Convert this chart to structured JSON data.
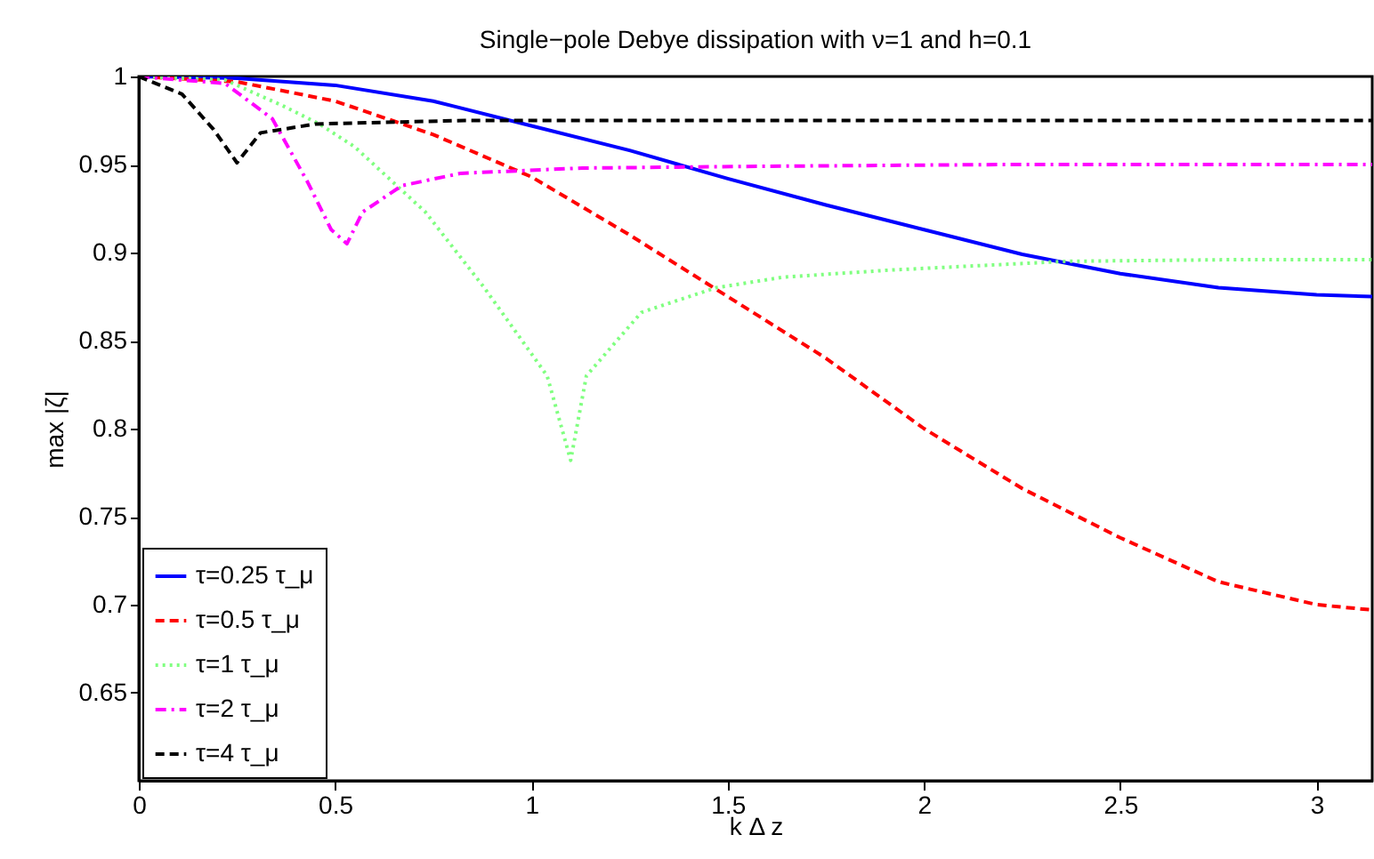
{
  "chart_data": {
    "type": "line",
    "title": "Single−pole Debye dissipation with ν=1 and h=0.1",
    "xlabel": "k Δ z",
    "ylabel": "max |ζ|",
    "xlim": [
      0,
      3.1416
    ],
    "ylim": [
      0.6,
      1
    ],
    "xticks": [
      0,
      0.5,
      1,
      1.5,
      2,
      2.5,
      3
    ],
    "yticks": [
      0.65,
      0.7,
      0.75,
      0.8,
      0.85,
      0.9,
      0.95,
      1
    ],
    "grid": false,
    "legend": "bottom left",
    "series": [
      {
        "name": "τ=0.25 τ_μ",
        "color": "#0000ff",
        "line_style": "solid",
        "x": [
          0,
          0.25,
          0.5,
          0.75,
          1,
          1.25,
          1.5,
          1.75,
          2,
          2.25,
          2.5,
          2.75,
          3,
          3.1416
        ],
        "values": [
          1,
          0.999,
          0.995,
          0.986,
          0.972,
          0.958,
          0.942,
          0.927,
          0.913,
          0.899,
          0.888,
          0.88,
          0.876,
          0.875
        ]
      },
      {
        "name": "τ=0.5 τ_μ",
        "color": "#ff0000",
        "line_style": "dashed",
        "x": [
          0,
          0.25,
          0.5,
          0.75,
          1,
          1.25,
          1.5,
          1.75,
          2,
          2.25,
          2.5,
          2.75,
          3,
          3.1416
        ],
        "values": [
          1,
          0.997,
          0.986,
          0.967,
          0.943,
          0.91,
          0.875,
          0.84,
          0.8,
          0.766,
          0.738,
          0.713,
          0.7,
          0.697
        ]
      },
      {
        "name": "τ=1 τ_μ",
        "color": "#80ff80",
        "line_style": "dotted",
        "x": [
          0,
          0.22,
          0.37,
          0.46,
          0.55,
          0.73,
          0.88,
          1.04,
          1.1,
          1.14,
          1.28,
          1.47,
          1.64,
          1.91,
          2.36,
          2.8,
          3.1416
        ],
        "values": [
          1,
          0.998,
          0.983,
          0.973,
          0.96,
          0.923,
          0.88,
          0.83,
          0.782,
          0.83,
          0.866,
          0.88,
          0.886,
          0.89,
          0.895,
          0.896,
          0.896
        ]
      },
      {
        "name": "τ=2 τ_μ",
        "color": "#ff00ff",
        "line_style": "dashdot",
        "x": [
          0,
          0.22,
          0.34,
          0.43,
          0.49,
          0.53,
          0.57,
          0.67,
          0.82,
          1.13,
          1.6,
          2.2,
          3.1416
        ],
        "values": [
          1,
          0.996,
          0.976,
          0.94,
          0.913,
          0.905,
          0.923,
          0.938,
          0.945,
          0.948,
          0.949,
          0.95,
          0.95
        ]
      },
      {
        "name": "τ=4 τ_μ",
        "color": "#000000",
        "line_style": "dashed",
        "x": [
          0,
          0.11,
          0.19,
          0.25,
          0.31,
          0.45,
          0.83,
          1.5,
          3.1416
        ],
        "values": [
          1,
          0.99,
          0.97,
          0.951,
          0.968,
          0.973,
          0.975,
          0.975,
          0.975
        ]
      }
    ]
  }
}
